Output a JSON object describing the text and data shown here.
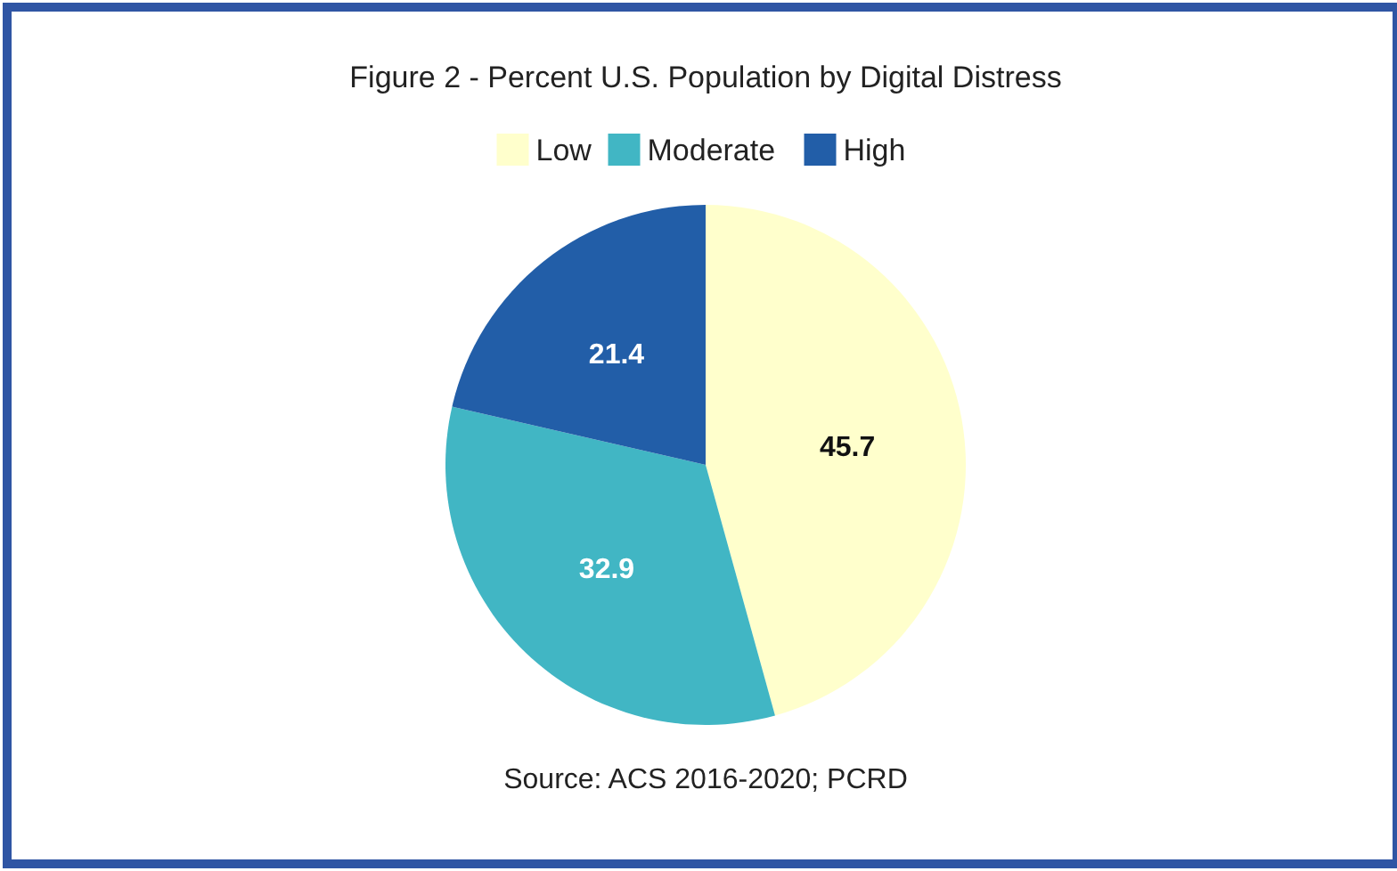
{
  "chart_data": {
    "type": "pie",
    "title": "Figure 2 - Percent U.S. Population by Digital Distress",
    "categories": [
      "Low",
      "Moderate",
      "High"
    ],
    "values": [
      45.7,
      32.9,
      21.4
    ],
    "colors": [
      "#ffffcc",
      "#41b6c4",
      "#225ea8"
    ],
    "data_labels": true,
    "legend": "top",
    "annotations": [
      "Source: ACS 2016-2020; PCRD"
    ]
  }
}
